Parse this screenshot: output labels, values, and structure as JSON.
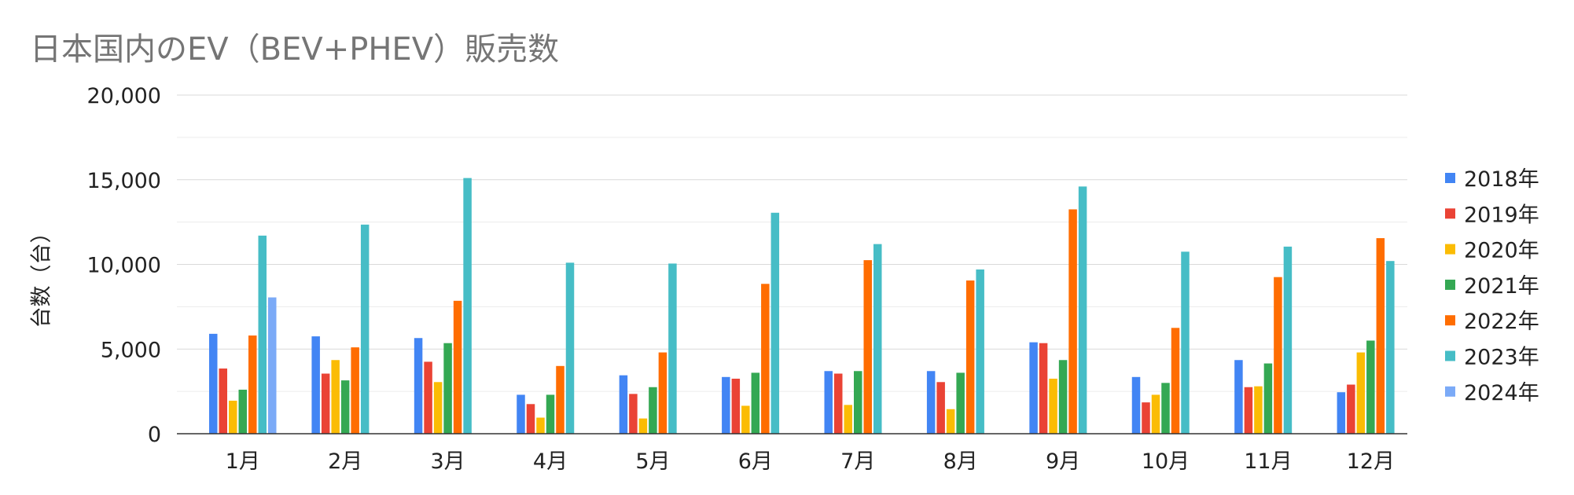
{
  "chart_data": {
    "type": "bar",
    "title": "日本国内のEV（BEV+PHEV）販売数",
    "ylabel": "台数（台）",
    "xlabel": "",
    "ylim": [
      0,
      20000
    ],
    "y_ticks": [
      0,
      5000,
      10000,
      15000,
      20000
    ],
    "y_tick_labels": [
      "0",
      "5,000",
      "10,000",
      "15,000",
      "20,000"
    ],
    "grid": true,
    "legend_position": "right",
    "categories": [
      "1月",
      "2月",
      "3月",
      "4月",
      "5月",
      "6月",
      "7月",
      "8月",
      "9月",
      "10月",
      "11月",
      "12月"
    ],
    "series": [
      {
        "name": "2018年",
        "color": "#4285F4",
        "values": [
          5900,
          5750,
          5650,
          2300,
          3450,
          3350,
          3700,
          3700,
          5400,
          3350,
          4350,
          2450
        ]
      },
      {
        "name": "2019年",
        "color": "#EA4335",
        "values": [
          3850,
          3550,
          4250,
          1750,
          2350,
          3250,
          3550,
          3050,
          5350,
          1850,
          2750,
          2900
        ]
      },
      {
        "name": "2020年",
        "color": "#FBBC04",
        "values": [
          1950,
          4350,
          3050,
          950,
          900,
          1650,
          1700,
          1450,
          3250,
          2300,
          2800,
          4800
        ]
      },
      {
        "name": "2021年",
        "color": "#34A853",
        "values": [
          2600,
          3150,
          5350,
          2300,
          2750,
          3600,
          3700,
          3600,
          4350,
          3000,
          4150,
          5500
        ]
      },
      {
        "name": "2022年",
        "color": "#FF6D01",
        "values": [
          5800,
          5100,
          7850,
          4000,
          4800,
          8850,
          10250,
          9050,
          13250,
          6250,
          9250,
          11550
        ]
      },
      {
        "name": "2023年",
        "color": "#46BDC6",
        "values": [
          11700,
          12350,
          15100,
          10100,
          10050,
          13050,
          11200,
          9700,
          14600,
          10750,
          11050,
          10200
        ]
      },
      {
        "name": "2024年",
        "color": "#7BAAF7",
        "values": [
          8050,
          null,
          null,
          null,
          null,
          null,
          null,
          null,
          null,
          null,
          null,
          null
        ]
      }
    ]
  }
}
